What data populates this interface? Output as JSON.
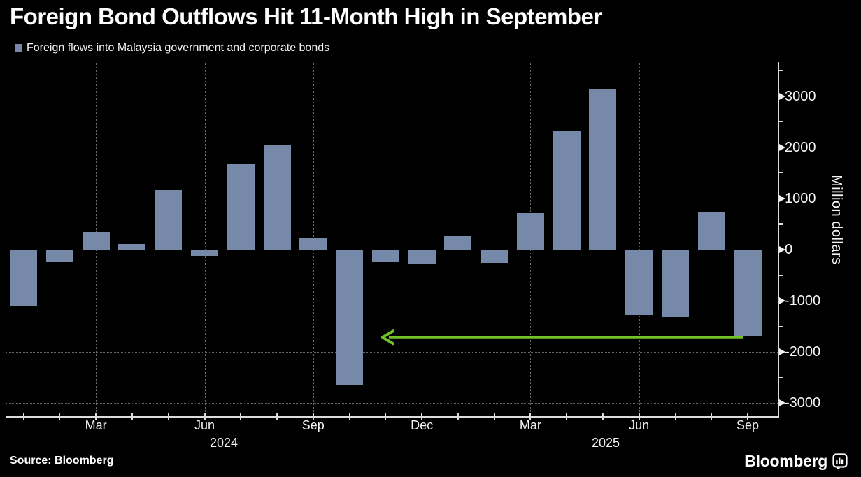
{
  "header": {
    "title": "Foreign Bond Outflows Hit 11-Month High in September",
    "legend": {
      "label": "Foreign flows into Malaysia government and corporate bonds",
      "swatch_color": "#7689a9"
    }
  },
  "chart_data": {
    "type": "bar",
    "title": "Foreign Bond Outflows Hit 11-Month High in September",
    "series_label": "Foreign flows into Malaysia government and corporate bonds",
    "categories": [
      "Jan 2024",
      "Feb 2024",
      "Mar 2024",
      "Apr 2024",
      "May 2024",
      "Jun 2024",
      "Jul 2024",
      "Aug 2024",
      "Sep 2024",
      "Oct 2024",
      "Nov 2024",
      "Dec 2024",
      "Jan 2025",
      "Feb 2025",
      "Mar 2025",
      "Apr 2025",
      "May 2025",
      "Jun 2025",
      "Jul 2025",
      "Aug 2025",
      "Sep 2025"
    ],
    "values": [
      -1100,
      -230,
      340,
      110,
      1160,
      -120,
      1670,
      2040,
      230,
      -2650,
      -240,
      -290,
      260,
      -260,
      730,
      2330,
      3150,
      -1280,
      -1310,
      740,
      -1700
    ],
    "xlabel": "",
    "ylabel": "Million dollars",
    "ylim": [
      -3300,
      3680
    ],
    "y_ticks": [
      3000,
      2000,
      1000,
      0,
      -1000,
      -2000,
      -3000
    ],
    "y_minor_ticks": [
      3500,
      2500,
      1500,
      500,
      -500,
      -1500,
      -2500
    ],
    "x_tick_labels": [
      "Mar",
      "Jun",
      "Sep",
      "Dec",
      "Mar",
      "Jun",
      "Sep"
    ],
    "x_tick_month_indices": [
      2,
      5,
      8,
      11,
      14,
      17,
      20
    ],
    "year_labels": [
      "2024",
      "2025"
    ],
    "grid": "dotted, both axes",
    "legend_position": "top-left",
    "bar_color": "#7689a9",
    "annotation": {
      "type": "arrow",
      "direction": "left",
      "color": "#70c226",
      "y_value": -1700,
      "from_category": "Sep 2025",
      "points_back_to": "Oct 2024 outflow, 11 months earlier"
    }
  },
  "footer": {
    "source": "Source: Bloomberg",
    "brand": "Bloomberg"
  }
}
